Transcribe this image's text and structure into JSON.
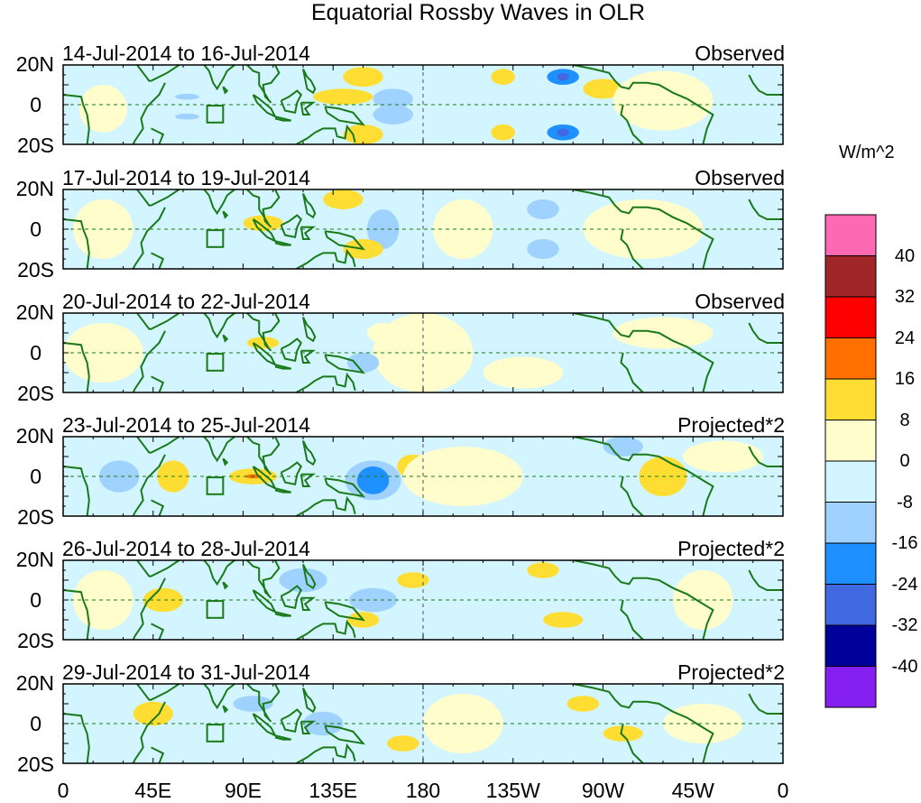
{
  "title": "Equatorial Rossby Waves in OLR",
  "panels": [
    {
      "date_range": "14-Jul-2014 to 16-Jul-2014",
      "status": "Observed"
    },
    {
      "date_range": "17-Jul-2014 to 19-Jul-2014",
      "status": "Observed"
    },
    {
      "date_range": "20-Jul-2014 to 22-Jul-2014",
      "status": "Observed"
    },
    {
      "date_range": "23-Jul-2014 to 25-Jul-2014",
      "status": "Projected*2"
    },
    {
      "date_range": "26-Jul-2014 to 28-Jul-2014",
      "status": "Projected*2"
    },
    {
      "date_range": "29-Jul-2014 to 31-Jul-2014",
      "status": "Projected*2"
    }
  ],
  "y_ticks": [
    "20N",
    "0",
    "20S"
  ],
  "x_ticks": [
    "0",
    "45E",
    "90E",
    "135E",
    "180",
    "135W",
    "90W",
    "45W",
    "0"
  ],
  "colorbar": {
    "unit": "W/m^2",
    "labels": [
      "40",
      "32",
      "24",
      "16",
      "8",
      "0",
      "-8",
      "-16",
      "-24",
      "-32",
      "-40"
    ],
    "colors": [
      "#FF69B4",
      "#A0262A",
      "#FF0000",
      "#FF7000",
      "#FFDD33",
      "#FFFDCC",
      "#D2F5FF",
      "#A0D2FF",
      "#1E90FF",
      "#4169E1",
      "#00009A",
      "#8520F0"
    ]
  },
  "coast_color": "#1A7A1A"
}
